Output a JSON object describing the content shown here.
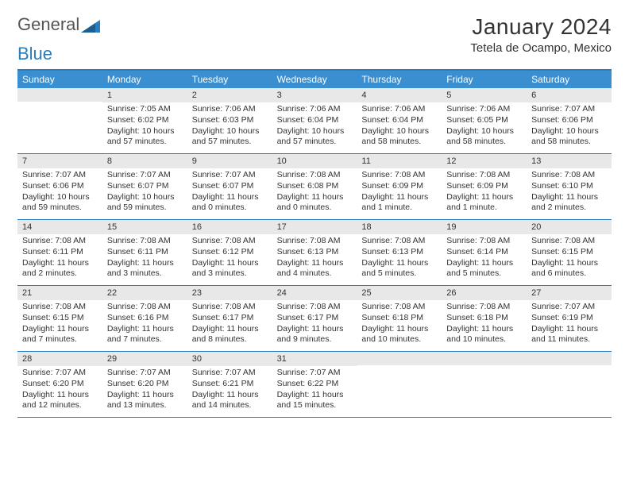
{
  "logo": {
    "part1": "General",
    "part2": "Blue"
  },
  "title": "January 2024",
  "location": "Tetela de Ocampo, Mexico",
  "day_headers": [
    "Sunday",
    "Monday",
    "Tuesday",
    "Wednesday",
    "Thursday",
    "Friday",
    "Saturday"
  ],
  "colors": {
    "header_bg": "#3a8fd0",
    "accent": "#2a7dbd",
    "daynum_bg": "#e8e8e8",
    "text": "#333333"
  },
  "weeks": [
    [
      {
        "num": "",
        "lines": []
      },
      {
        "num": "1",
        "lines": [
          "Sunrise: 7:05 AM",
          "Sunset: 6:02 PM",
          "Daylight: 10 hours",
          "and 57 minutes."
        ]
      },
      {
        "num": "2",
        "lines": [
          "Sunrise: 7:06 AM",
          "Sunset: 6:03 PM",
          "Daylight: 10 hours",
          "and 57 minutes."
        ]
      },
      {
        "num": "3",
        "lines": [
          "Sunrise: 7:06 AM",
          "Sunset: 6:04 PM",
          "Daylight: 10 hours",
          "and 57 minutes."
        ]
      },
      {
        "num": "4",
        "lines": [
          "Sunrise: 7:06 AM",
          "Sunset: 6:04 PM",
          "Daylight: 10 hours",
          "and 58 minutes."
        ]
      },
      {
        "num": "5",
        "lines": [
          "Sunrise: 7:06 AM",
          "Sunset: 6:05 PM",
          "Daylight: 10 hours",
          "and 58 minutes."
        ]
      },
      {
        "num": "6",
        "lines": [
          "Sunrise: 7:07 AM",
          "Sunset: 6:06 PM",
          "Daylight: 10 hours",
          "and 58 minutes."
        ]
      }
    ],
    [
      {
        "num": "7",
        "lines": [
          "Sunrise: 7:07 AM",
          "Sunset: 6:06 PM",
          "Daylight: 10 hours",
          "and 59 minutes."
        ]
      },
      {
        "num": "8",
        "lines": [
          "Sunrise: 7:07 AM",
          "Sunset: 6:07 PM",
          "Daylight: 10 hours",
          "and 59 minutes."
        ]
      },
      {
        "num": "9",
        "lines": [
          "Sunrise: 7:07 AM",
          "Sunset: 6:07 PM",
          "Daylight: 11 hours",
          "and 0 minutes."
        ]
      },
      {
        "num": "10",
        "lines": [
          "Sunrise: 7:08 AM",
          "Sunset: 6:08 PM",
          "Daylight: 11 hours",
          "and 0 minutes."
        ]
      },
      {
        "num": "11",
        "lines": [
          "Sunrise: 7:08 AM",
          "Sunset: 6:09 PM",
          "Daylight: 11 hours",
          "and 1 minute."
        ]
      },
      {
        "num": "12",
        "lines": [
          "Sunrise: 7:08 AM",
          "Sunset: 6:09 PM",
          "Daylight: 11 hours",
          "and 1 minute."
        ]
      },
      {
        "num": "13",
        "lines": [
          "Sunrise: 7:08 AM",
          "Sunset: 6:10 PM",
          "Daylight: 11 hours",
          "and 2 minutes."
        ]
      }
    ],
    [
      {
        "num": "14",
        "lines": [
          "Sunrise: 7:08 AM",
          "Sunset: 6:11 PM",
          "Daylight: 11 hours",
          "and 2 minutes."
        ]
      },
      {
        "num": "15",
        "lines": [
          "Sunrise: 7:08 AM",
          "Sunset: 6:11 PM",
          "Daylight: 11 hours",
          "and 3 minutes."
        ]
      },
      {
        "num": "16",
        "lines": [
          "Sunrise: 7:08 AM",
          "Sunset: 6:12 PM",
          "Daylight: 11 hours",
          "and 3 minutes."
        ]
      },
      {
        "num": "17",
        "lines": [
          "Sunrise: 7:08 AM",
          "Sunset: 6:13 PM",
          "Daylight: 11 hours",
          "and 4 minutes."
        ]
      },
      {
        "num": "18",
        "lines": [
          "Sunrise: 7:08 AM",
          "Sunset: 6:13 PM",
          "Daylight: 11 hours",
          "and 5 minutes."
        ]
      },
      {
        "num": "19",
        "lines": [
          "Sunrise: 7:08 AM",
          "Sunset: 6:14 PM",
          "Daylight: 11 hours",
          "and 5 minutes."
        ]
      },
      {
        "num": "20",
        "lines": [
          "Sunrise: 7:08 AM",
          "Sunset: 6:15 PM",
          "Daylight: 11 hours",
          "and 6 minutes."
        ]
      }
    ],
    [
      {
        "num": "21",
        "lines": [
          "Sunrise: 7:08 AM",
          "Sunset: 6:15 PM",
          "Daylight: 11 hours",
          "and 7 minutes."
        ]
      },
      {
        "num": "22",
        "lines": [
          "Sunrise: 7:08 AM",
          "Sunset: 6:16 PM",
          "Daylight: 11 hours",
          "and 7 minutes."
        ]
      },
      {
        "num": "23",
        "lines": [
          "Sunrise: 7:08 AM",
          "Sunset: 6:17 PM",
          "Daylight: 11 hours",
          "and 8 minutes."
        ]
      },
      {
        "num": "24",
        "lines": [
          "Sunrise: 7:08 AM",
          "Sunset: 6:17 PM",
          "Daylight: 11 hours",
          "and 9 minutes."
        ]
      },
      {
        "num": "25",
        "lines": [
          "Sunrise: 7:08 AM",
          "Sunset: 6:18 PM",
          "Daylight: 11 hours",
          "and 10 minutes."
        ]
      },
      {
        "num": "26",
        "lines": [
          "Sunrise: 7:08 AM",
          "Sunset: 6:18 PM",
          "Daylight: 11 hours",
          "and 10 minutes."
        ]
      },
      {
        "num": "27",
        "lines": [
          "Sunrise: 7:07 AM",
          "Sunset: 6:19 PM",
          "Daylight: 11 hours",
          "and 11 minutes."
        ]
      }
    ],
    [
      {
        "num": "28",
        "lines": [
          "Sunrise: 7:07 AM",
          "Sunset: 6:20 PM",
          "Daylight: 11 hours",
          "and 12 minutes."
        ]
      },
      {
        "num": "29",
        "lines": [
          "Sunrise: 7:07 AM",
          "Sunset: 6:20 PM",
          "Daylight: 11 hours",
          "and 13 minutes."
        ]
      },
      {
        "num": "30",
        "lines": [
          "Sunrise: 7:07 AM",
          "Sunset: 6:21 PM",
          "Daylight: 11 hours",
          "and 14 minutes."
        ]
      },
      {
        "num": "31",
        "lines": [
          "Sunrise: 7:07 AM",
          "Sunset: 6:22 PM",
          "Daylight: 11 hours",
          "and 15 minutes."
        ]
      },
      {
        "num": "",
        "lines": []
      },
      {
        "num": "",
        "lines": []
      },
      {
        "num": "",
        "lines": []
      }
    ]
  ]
}
